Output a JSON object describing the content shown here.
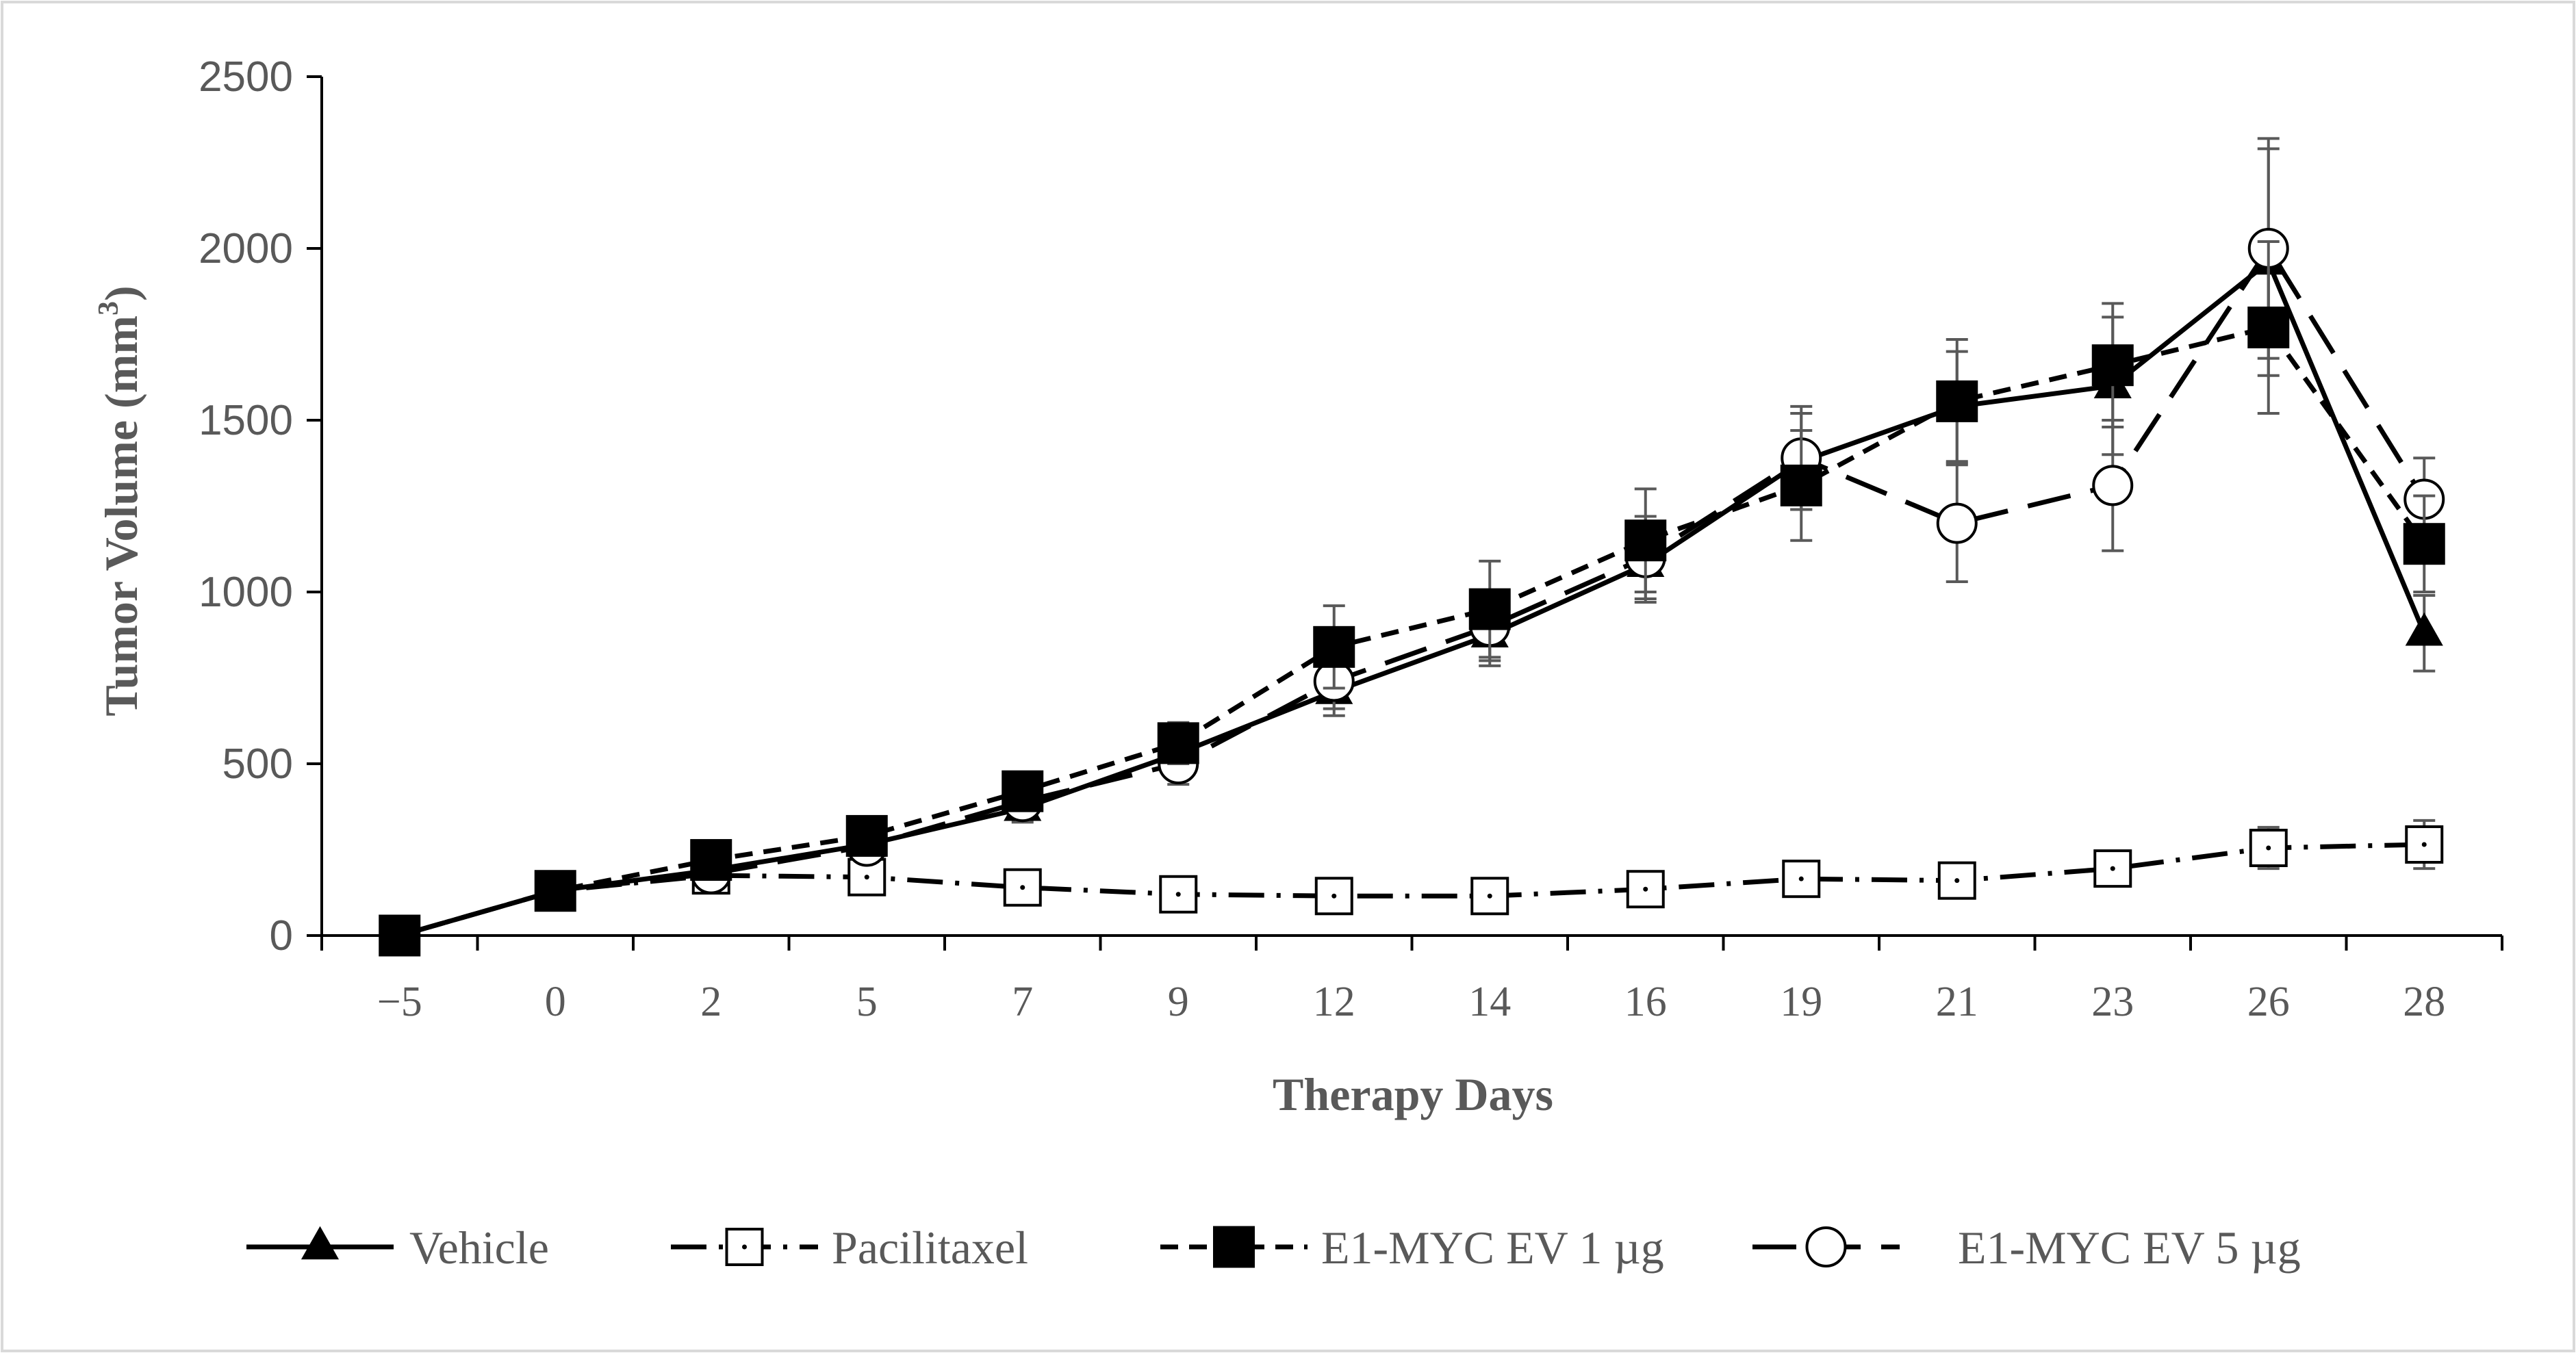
{
  "chart_data": {
    "type": "line",
    "title": "",
    "xlabel": "Therapy Days",
    "ylabel_main": "Tumor Volume (mm",
    "ylabel_sup": "3",
    "ylabel_close": ")",
    "ylim": [
      0,
      2500
    ],
    "yticks": [
      0,
      500,
      1000,
      1500,
      2000,
      2500
    ],
    "categories": [
      "−5",
      "0",
      "2",
      "5",
      "7",
      "9",
      "12",
      "14",
      "16",
      "19",
      "21",
      "23",
      "26",
      "28"
    ],
    "legend_position": "bottom",
    "series": [
      {
        "name": "Vehicle",
        "marker": "triangle",
        "line": "solid",
        "values": [
          0,
          130,
          190,
          265,
          370,
          530,
          710,
          875,
          1080,
          1380,
          1540,
          1600,
          1960,
          880
        ],
        "errors": [
          0,
          15,
          25,
          30,
          40,
          55,
          70,
          90,
          110,
          140,
          160,
          200,
          330,
          110
        ]
      },
      {
        "name": "Pacilitaxel",
        "marker": "square-open",
        "line": "dash-dot",
        "values": [
          0,
          130,
          175,
          170,
          140,
          120,
          115,
          115,
          135,
          165,
          160,
          195,
          255,
          265
        ],
        "errors": [
          0,
          15,
          15,
          20,
          25,
          25,
          30,
          35,
          40,
          45,
          45,
          50,
          60,
          70
        ]
      },
      {
        "name": "E1-MYC EV 1 µg",
        "marker": "square-filled",
        "line": "dashed",
        "values": [
          0,
          130,
          220,
          290,
          420,
          560,
          840,
          950,
          1150,
          1310,
          1555,
          1660,
          1770,
          1140
        ],
        "errors": [
          0,
          15,
          25,
          30,
          45,
          60,
          120,
          140,
          150,
          160,
          180,
          180,
          250,
          140
        ]
      },
      {
        "name": "E1-MYC EV 5 µg",
        "marker": "circle-open",
        "line": "long-dash",
        "values": [
          0,
          130,
          180,
          260,
          390,
          500,
          740,
          900,
          1100,
          1390,
          1200,
          1310,
          2000,
          1270
        ],
        "errors": [
          0,
          15,
          25,
          30,
          45,
          60,
          80,
          100,
          120,
          150,
          170,
          190,
          320,
          120
        ]
      }
    ],
    "colors": {
      "line": "#000000",
      "axis": "#000000",
      "text": "#595959",
      "errorbar": "#595959",
      "border": "#d9d9d9"
    }
  }
}
